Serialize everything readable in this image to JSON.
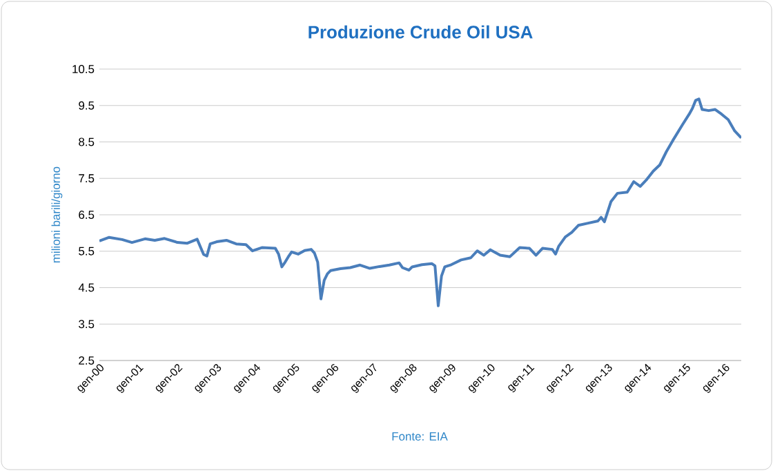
{
  "chart_data": {
    "type": "line",
    "title": "Produzione Crude Oil USA",
    "ylabel": "milioni barili/giorno",
    "annotations": [
      "Fonte:  EIA"
    ],
    "x": [
      "2000-01",
      "2000-04",
      "2000-08",
      "2000-11",
      "2001-03",
      "2001-06",
      "2001-09",
      "2002-01",
      "2002-04",
      "2002-07",
      "2002-09",
      "2002-10",
      "2002-11",
      "2003-01",
      "2003-04",
      "2003-07",
      "2003-10",
      "2003-12",
      "2004-03",
      "2004-07",
      "2004-08",
      "2004-09",
      "2004-10",
      "2004-11",
      "2004-12",
      "2005-02",
      "2005-04",
      "2005-06",
      "2005-07",
      "2005-08",
      "2005-09",
      "2005-10",
      "2005-11",
      "2005-12",
      "2006-03",
      "2006-06",
      "2006-09",
      "2006-12",
      "2007-03",
      "2007-06",
      "2007-09",
      "2007-10",
      "2007-12",
      "2008-01",
      "2008-04",
      "2008-07",
      "2008-08",
      "2008-09",
      "2008-10",
      "2008-11",
      "2009-01",
      "2009-04",
      "2009-07",
      "2009-09",
      "2009-11",
      "2010-01",
      "2010-04",
      "2010-07",
      "2010-10",
      "2011-01",
      "2011-03",
      "2011-05",
      "2011-08",
      "2011-09",
      "2011-10",
      "2011-12",
      "2012-02",
      "2012-04",
      "2012-07",
      "2012-10",
      "2012-11",
      "2012-12",
      "2013-02",
      "2013-04",
      "2013-07",
      "2013-09",
      "2013-11",
      "2014-01",
      "2014-03",
      "2014-05",
      "2014-07",
      "2014-09",
      "2014-12",
      "2015-02",
      "2015-03",
      "2015-04",
      "2015-05",
      "2015-06",
      "2015-08",
      "2015-10",
      "2015-12",
      "2016-02",
      "2016-04",
      "2016-06"
    ],
    "series": [
      {
        "color": "#4a7ebb",
        "values": [
          5.78,
          5.88,
          5.82,
          5.74,
          5.84,
          5.8,
          5.85,
          5.74,
          5.72,
          5.83,
          5.41,
          5.37,
          5.7,
          5.76,
          5.8,
          5.7,
          5.68,
          5.51,
          5.6,
          5.58,
          5.42,
          5.07,
          5.2,
          5.35,
          5.48,
          5.42,
          5.52,
          5.55,
          5.45,
          5.2,
          4.19,
          4.7,
          4.88,
          4.97,
          5.02,
          5.05,
          5.12,
          5.03,
          5.08,
          5.12,
          5.18,
          5.05,
          4.98,
          5.07,
          5.13,
          5.16,
          5.1,
          4.0,
          4.82,
          5.07,
          5.13,
          5.26,
          5.32,
          5.51,
          5.39,
          5.54,
          5.39,
          5.35,
          5.6,
          5.58,
          5.39,
          5.58,
          5.55,
          5.42,
          5.64,
          5.89,
          6.02,
          6.21,
          6.27,
          6.33,
          6.43,
          6.31,
          6.86,
          7.09,
          7.12,
          7.41,
          7.28,
          7.47,
          7.7,
          7.87,
          8.23,
          8.54,
          8.98,
          9.26,
          9.42,
          9.64,
          9.68,
          9.39,
          9.36,
          9.39,
          9.26,
          9.11,
          8.8,
          8.61
        ]
      }
    ],
    "xlim": [
      "2000-01",
      "2016-06"
    ],
    "xticks": [
      {
        "value": "2000-01",
        "label": "gen-00"
      },
      {
        "value": "2001-01",
        "label": "gen-01"
      },
      {
        "value": "2002-01",
        "label": "gen-02"
      },
      {
        "value": "2003-01",
        "label": "gen-03"
      },
      {
        "value": "2004-01",
        "label": "gen-04"
      },
      {
        "value": "2005-01",
        "label": "gen-05"
      },
      {
        "value": "2006-01",
        "label": "gen-06"
      },
      {
        "value": "2007-01",
        "label": "gen-07"
      },
      {
        "value": "2008-01",
        "label": "gen-08"
      },
      {
        "value": "2009-01",
        "label": "gen-09"
      },
      {
        "value": "2010-01",
        "label": "gen-10"
      },
      {
        "value": "2011-01",
        "label": "gen-11"
      },
      {
        "value": "2012-01",
        "label": "gen-12"
      },
      {
        "value": "2013-01",
        "label": "gen-13"
      },
      {
        "value": "2014-01",
        "label": "gen-14"
      },
      {
        "value": "2015-01",
        "label": "gen-15"
      },
      {
        "value": "2016-01",
        "label": "gen-16"
      }
    ],
    "ylim": [
      2.5,
      10.5
    ],
    "yticks": [
      2.5,
      3.5,
      4.5,
      5.5,
      6.5,
      7.5,
      8.5,
      9.5,
      10.5
    ],
    "grid": "y",
    "marker": "none",
    "line_style": "solid"
  }
}
